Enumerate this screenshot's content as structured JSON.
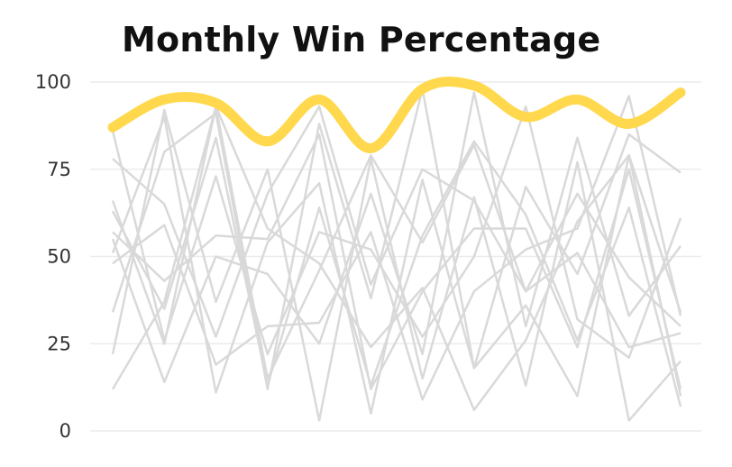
{
  "chart_data": {
    "type": "line",
    "title": "Monthly Win Percentage",
    "xlabel": "",
    "ylabel": "",
    "ylim": [
      0,
      100
    ],
    "yticks": [
      0,
      25,
      50,
      75,
      100
    ],
    "grid": "horizontal",
    "x": [
      1,
      2,
      3,
      4,
      5,
      6,
      7,
      8,
      9,
      10,
      11,
      12
    ],
    "highlight_color": "#ffd84d",
    "background_color": "#d9d9d9",
    "highlight": {
      "values": [
        87,
        95,
        94,
        83,
        95,
        81,
        98,
        99,
        90,
        95,
        88,
        97
      ]
    },
    "background_series": [
      {
        "values": [
          12,
          37,
          93,
          58,
          48,
          24,
          41,
          6,
          26,
          60,
          79,
          10
        ]
      },
      {
        "values": [
          22,
          92,
          37,
          75,
          3,
          78,
          15,
          67,
          13,
          77,
          3,
          20
        ]
      },
      {
        "values": [
          34,
          80,
          91,
          12,
          88,
          38,
          98,
          18,
          70,
          45,
          85,
          74
        ]
      },
      {
        "values": [
          55,
          14,
          50,
          45,
          25,
          68,
          22,
          97,
          30,
          84,
          33,
          53
        ]
      },
      {
        "values": [
          63,
          35,
          84,
          13,
          64,
          13,
          56,
          83,
          62,
          26,
          64,
          7
        ]
      },
      {
        "values": [
          78,
          65,
          27,
          68,
          93,
          42,
          75,
          66,
          40,
          68,
          44,
          30
        ]
      },
      {
        "values": [
          51,
          90,
          11,
          54,
          71,
          5,
          72,
          18,
          36,
          10,
          79,
          34
        ]
      },
      {
        "values": [
          86,
          26,
          73,
          22,
          57,
          52,
          27,
          50,
          93,
          32,
          21,
          61
        ]
      },
      {
        "values": [
          48,
          59,
          19,
          30,
          31,
          57,
          9,
          40,
          52,
          58,
          96,
          33
        ]
      },
      {
        "values": [
          57,
          43,
          56,
          55,
          85,
          12,
          40,
          58,
          58,
          24,
          75,
          12
        ]
      },
      {
        "values": [
          66,
          25,
          93,
          15,
          46,
          79,
          54,
          82,
          40,
          51,
          24,
          28
        ]
      }
    ]
  }
}
